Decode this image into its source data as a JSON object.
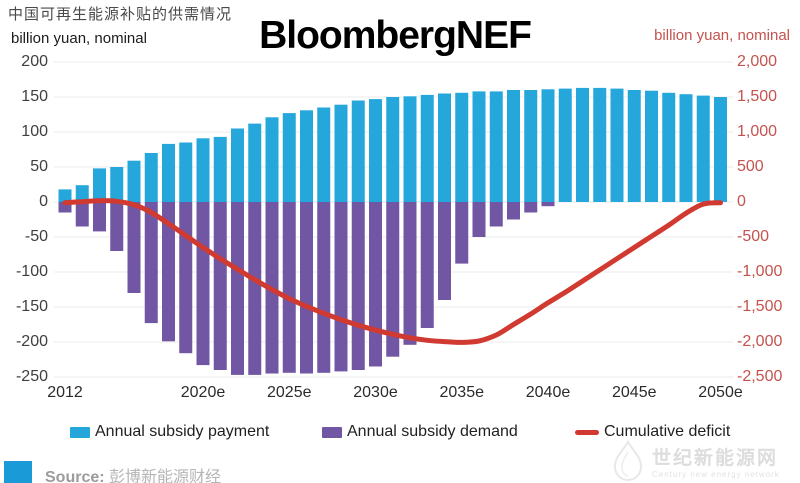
{
  "page": {
    "title_cn": "中国可再生能源补贴的供需情况",
    "brand": "BloombergNEF"
  },
  "axes": {
    "left_label": "billion yuan, nominal",
    "right_label": "billion yuan, nominal",
    "left_ticks": [
      200,
      150,
      100,
      50,
      0,
      -50,
      -100,
      -150,
      -200,
      -250
    ],
    "right_ticks": [
      2000,
      1500,
      1000,
      500,
      0,
      -500,
      -1000,
      -1500,
      -2000,
      -2500
    ],
    "x_ticks": [
      {
        "label": "2012",
        "year": 2012
      },
      {
        "label": "2020e",
        "year": 2020
      },
      {
        "label": "2025e",
        "year": 2025
      },
      {
        "label": "2030e",
        "year": 2030
      },
      {
        "label": "2035e",
        "year": 2035
      },
      {
        "label": "2040e",
        "year": 2040
      },
      {
        "label": "2045e",
        "year": 2045
      },
      {
        "label": "2050e",
        "year": 2050
      }
    ]
  },
  "legend": {
    "items": [
      {
        "label": "Annual subsidy payment",
        "swatch": "square",
        "color": "#25a7dc"
      },
      {
        "label": "Annual subsidy demand",
        "swatch": "square",
        "color": "#7156a3"
      },
      {
        "label": "Cumulative deficit",
        "swatch": "line",
        "color": "#d03a31"
      }
    ]
  },
  "source": {
    "label": "Source:",
    "name": "彭博新能源财经"
  },
  "watermark": {
    "cn": "世纪新能源网",
    "en": "Century new energy network"
  },
  "chart_data": {
    "type": "combo",
    "title": "中国可再生能源补贴的供需情况 (BloombergNEF)",
    "categories": [
      2012,
      2013,
      2014,
      2015,
      2016,
      2017,
      2018,
      2019,
      2020,
      2021,
      2022,
      2023,
      2024,
      2025,
      2026,
      2027,
      2028,
      2029,
      2030,
      2031,
      2032,
      2033,
      2034,
      2035,
      2036,
      2037,
      2038,
      2039,
      2040,
      2041,
      2042,
      2043,
      2044,
      2045,
      2046,
      2047,
      2048,
      2049,
      2050
    ],
    "series": [
      {
        "name": "Annual subsidy payment",
        "type": "bar",
        "axis": "left",
        "color": "#25a7dc",
        "values": [
          18,
          24,
          48,
          50,
          59,
          70,
          83,
          85,
          91,
          93,
          105,
          112,
          121,
          127,
          131,
          135,
          139,
          145,
          147,
          150,
          151,
          153,
          155,
          156,
          158,
          158,
          160,
          160,
          161,
          162,
          163,
          163,
          162,
          160,
          159,
          156,
          154,
          152,
          150
        ]
      },
      {
        "name": "Annual subsidy demand",
        "type": "bar",
        "axis": "left",
        "color": "#7156a3",
        "values": [
          -15,
          -35,
          -42,
          -70,
          -130,
          -173,
          -199,
          -216,
          -233,
          -240,
          -247,
          -247,
          -245,
          -244,
          -245,
          -244,
          -242,
          -240,
          -235,
          -221,
          -204,
          -180,
          -140,
          -88,
          -50,
          -35,
          -25,
          -15,
          -6,
          0,
          0,
          0,
          0,
          0,
          0,
          0,
          0,
          0,
          0
        ]
      },
      {
        "name": "Cumulative deficit",
        "type": "line",
        "axis": "right",
        "color": "#d03a31",
        "values": [
          -10,
          5,
          20,
          10,
          -40,
          -150,
          -310,
          -480,
          -650,
          -810,
          -960,
          -1110,
          -1250,
          -1380,
          -1490,
          -1590,
          -1680,
          -1760,
          -1830,
          -1890,
          -1940,
          -1975,
          -1995,
          -2005,
          -1985,
          -1900,
          -1750,
          -1600,
          -1440,
          -1290,
          -1130,
          -970,
          -810,
          -650,
          -490,
          -330,
          -160,
          -30,
          -10
        ]
      }
    ],
    "left_axis": {
      "label": "billion yuan, nominal",
      "range": [
        -250,
        200
      ],
      "tick_step": 50
    },
    "right_axis": {
      "label": "billion yuan, nominal",
      "range": [
        -2500,
        2000
      ],
      "tick_step": 500
    },
    "grid": true,
    "legend_position": "bottom"
  }
}
